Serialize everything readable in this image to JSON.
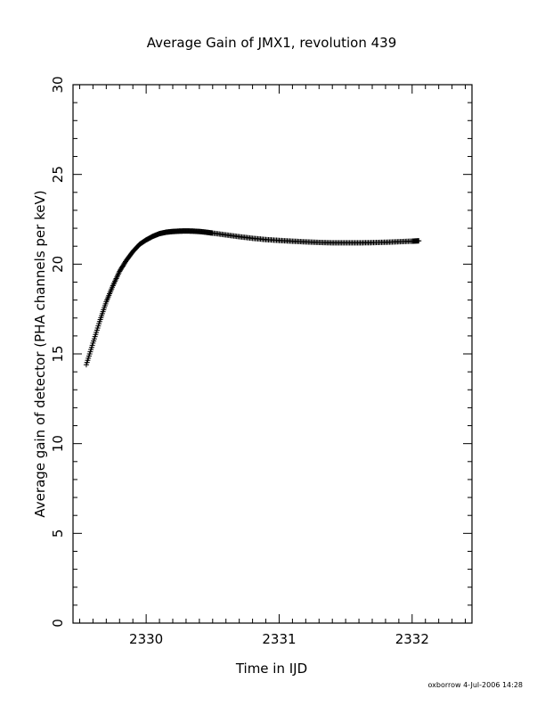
{
  "chart_data": {
    "type": "scatter",
    "title": "Average Gain of JMX1, revolution 439",
    "xlabel": "Time in IJD",
    "ylabel": "Average gain of detector (PHA channels per keV)",
    "xlim": [
      2329.45,
      2332.45
    ],
    "ylim": [
      0,
      30
    ],
    "x_ticks": [
      2330,
      2331,
      2332
    ],
    "x_tick_labels": [
      "2330",
      "2331",
      "2332"
    ],
    "y_ticks": [
      0,
      5,
      10,
      15,
      20,
      25,
      30
    ],
    "y_tick_labels": [
      "0",
      "5",
      "10",
      "15",
      "20",
      "25",
      "30"
    ],
    "grid": false,
    "marker": "+",
    "series": [
      {
        "x": [
          2329.55,
          2329.6,
          2329.65,
          2329.7,
          2329.75,
          2329.8,
          2329.85,
          2329.9,
          2329.95,
          2330.0,
          2330.05,
          2330.1,
          2330.15,
          2330.2,
          2330.25,
          2330.3,
          2330.35,
          2330.4,
          2330.45,
          2330.5,
          2330.6,
          2330.7,
          2330.8,
          2330.9,
          2331.0,
          2331.1,
          2331.2,
          2331.3,
          2331.4,
          2331.5,
          2331.6,
          2331.7,
          2331.8,
          2331.9,
          2332.0,
          2332.05
        ],
        "y": [
          14.4,
          15.6,
          16.8,
          17.9,
          18.8,
          19.6,
          20.2,
          20.7,
          21.1,
          21.35,
          21.55,
          21.7,
          21.78,
          21.82,
          21.84,
          21.85,
          21.84,
          21.82,
          21.78,
          21.73,
          21.63,
          21.53,
          21.44,
          21.37,
          21.32,
          21.28,
          21.24,
          21.21,
          21.19,
          21.19,
          21.19,
          21.2,
          21.22,
          21.25,
          21.28,
          21.3
        ]
      }
    ]
  },
  "footer": {
    "stamp": "oxborrow   4-Jul-2006 14:28"
  }
}
